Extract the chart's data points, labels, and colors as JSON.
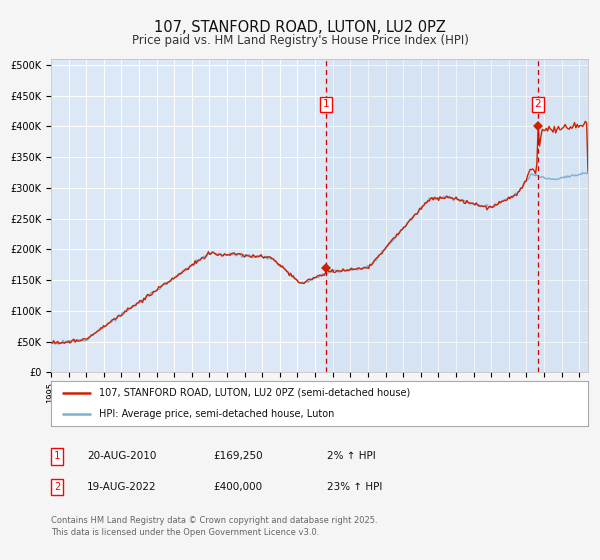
{
  "title": "107, STANFORD ROAD, LUTON, LU2 0PZ",
  "subtitle": "Price paid vs. HM Land Registry's House Price Index (HPI)",
  "title_fontsize": 10.5,
  "subtitle_fontsize": 8.5,
  "bg_color": "#f5f5f5",
  "plot_bg_color": "#dce8f5",
  "grid_color": "#ffffff",
  "ylabel_ticks": [
    "£0",
    "£50K",
    "£100K",
    "£150K",
    "£200K",
    "£250K",
    "£300K",
    "£350K",
    "£400K",
    "£450K",
    "£500K"
  ],
  "ytick_values": [
    0,
    50000,
    100000,
    150000,
    200000,
    250000,
    300000,
    350000,
    400000,
    450000,
    500000
  ],
  "ylim": [
    0,
    510000
  ],
  "xlim_start": 1995.0,
  "xlim_end": 2025.5,
  "xtick_years": [
    1995,
    1996,
    1997,
    1998,
    1999,
    2000,
    2001,
    2002,
    2003,
    2004,
    2005,
    2006,
    2007,
    2008,
    2009,
    2010,
    2011,
    2012,
    2013,
    2014,
    2015,
    2016,
    2017,
    2018,
    2019,
    2020,
    2021,
    2022,
    2023,
    2024,
    2025
  ],
  "hpi_color": "#7ab0d4",
  "price_color": "#cc2200",
  "sale1_x": 2010.637,
  "sale1_y": 169250,
  "sale1_label": "1",
  "sale1_date": "20-AUG-2010",
  "sale1_price": "£169,250",
  "sale1_hpi": "2% ↑ HPI",
  "sale2_x": 2022.637,
  "sale2_y": 400000,
  "sale2_label": "2",
  "sale2_date": "19-AUG-2022",
  "sale2_price": "£400,000",
  "sale2_hpi": "23% ↑ HPI",
  "legend_line1": "107, STANFORD ROAD, LUTON, LU2 0PZ (semi-detached house)",
  "legend_line2": "HPI: Average price, semi-detached house, Luton",
  "footer": "Contains HM Land Registry data © Crown copyright and database right 2025.\nThis data is licensed under the Open Government Licence v3.0.",
  "footer_fontsize": 6.0
}
